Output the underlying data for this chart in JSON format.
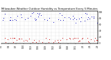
{
  "title": "Milwaukee Weather Outdoor Humidity vs Temperature Every 5 Minutes",
  "title_fontsize": 2.8,
  "bg_color": "#ffffff",
  "grid_color": "#aaaaaa",
  "humidity_color": "#0000bb",
  "temp_color": "#cc0000",
  "ylim": [
    0,
    105
  ],
  "xlim_days": 130,
  "num_hum_points": 55,
  "num_temp_points": 50,
  "seed": 7,
  "x_tick_labels": [
    "1/1",
    "1/4",
    "1/7",
    "1/10",
    "1/13",
    "1/16",
    "1/19",
    "1/22",
    "1/25",
    "1/28",
    "1/31",
    "2/3",
    "2/6",
    "2/9"
  ],
  "y_tick_labels_right": [
    "0",
    "20",
    "40",
    "60",
    "80",
    "100"
  ],
  "y_tick_vals_right": [
    0,
    20,
    40,
    60,
    80,
    100
  ],
  "num_vgrid": 26,
  "num_hgrid": 10
}
